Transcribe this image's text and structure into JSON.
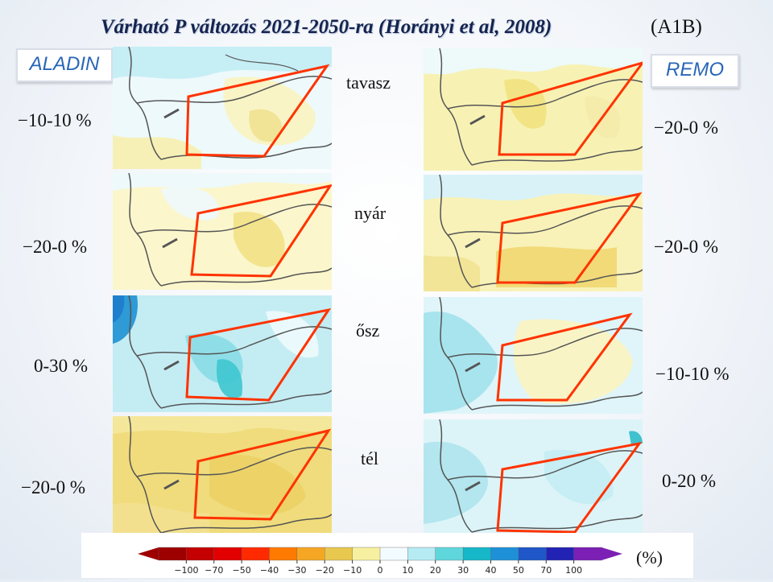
{
  "title": "Várható P változás 2021-2050-ra (Horányi et al, 2008)",
  "scenario": "(A1B)",
  "models": {
    "left": "ALADIN",
    "right": "REMO"
  },
  "rows": [
    {
      "season": "tavasz",
      "aladin_range": "−10-10 %",
      "remo_range": "−20-0 %"
    },
    {
      "season": "nyár",
      "aladin_range": "−20-0 %",
      "remo_range": "−20-0 %"
    },
    {
      "season": "ősz",
      "aladin_range": "0-30 %",
      "remo_range": "−10-10 %"
    },
    {
      "season": "tél",
      "aladin_range": "−20-0 %",
      "remo_range": "0-20 %"
    }
  ],
  "legend": {
    "unit": "(%)",
    "ticks": [
      "−100",
      "−70",
      "−50",
      "−40",
      "−30",
      "−20",
      "−10",
      "0",
      "10",
      "20",
      "30",
      "40",
      "50",
      "70",
      "100"
    ],
    "colors": [
      "#9e0000",
      "#c40000",
      "#e20000",
      "#ff2a00",
      "#ff7a00",
      "#f5a623",
      "#e8c84e",
      "#f7f0a0",
      "#f2fbff",
      "#b6ebf3",
      "#5fd6dc",
      "#15b7c8",
      "#1e90d8",
      "#1f57c8",
      "#2222b4",
      "#7b1fb5"
    ]
  },
  "colors": {
    "outline": "#ff3300",
    "title": "#14244f",
    "model_label": "#2a66b8"
  }
}
